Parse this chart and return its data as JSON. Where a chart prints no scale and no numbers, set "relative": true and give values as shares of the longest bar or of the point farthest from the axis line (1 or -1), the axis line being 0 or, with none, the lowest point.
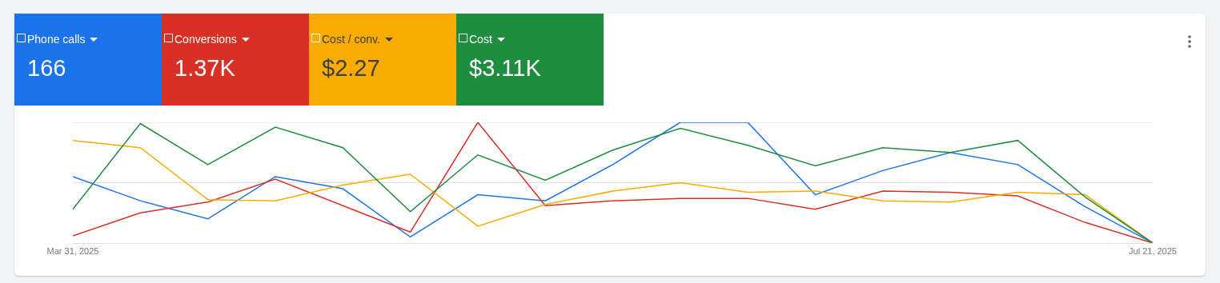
{
  "chart_data": {
    "type": "line",
    "relative": true,
    "legend": "top left",
    "marker": "none",
    "line_style": "solid",
    "ref_lines": [
      {
        "axis": "y",
        "value": 0.5,
        "color": "#e0e0e0"
      },
      {
        "axis": "y",
        "value": 1,
        "color": "#e0e0e0"
      }
    ],
    "x": [
      "2025-03-31",
      "2025-04-07",
      "2025-04-14",
      "2025-04-21",
      "2025-04-28",
      "2025-05-05",
      "2025-05-12",
      "2025-05-19",
      "2025-05-26",
      "2025-06-02",
      "2025-06-09",
      "2025-06-16",
      "2025-06-23",
      "2025-06-30",
      "2025-07-07",
      "2025-07-14",
      "2025-07-21"
    ],
    "xlim": [
      "2025-03-31",
      "2025-07-21"
    ],
    "xticks": [
      {
        "value": "2025-03-31",
        "label": "Mar 31, 2025"
      },
      {
        "value": "2025-07-21",
        "label": "Jul 21, 2025"
      }
    ],
    "series": [
      {
        "name": "Phone calls",
        "color": "#1a73e8",
        "values": [
          0.55,
          0.35,
          0.2,
          0.55,
          0.45,
          0.05,
          0.4,
          0.35,
          0.65,
          1,
          1,
          0.4,
          0.6,
          0.75,
          0.65,
          0.3,
          0
        ]
      },
      {
        "name": "Conversions",
        "color": "#d93025",
        "values": [
          0.06,
          0.25,
          0.34,
          0.53,
          0.31,
          0.09,
          1,
          0.31,
          0.35,
          0.37,
          0.37,
          0.28,
          0.43,
          0.42,
          0.39,
          0.17,
          0
        ]
      },
      {
        "name": "Cost / conv.",
        "color": "#f9ab00",
        "values": [
          0.85,
          0.79,
          0.36,
          0.35,
          0.48,
          0.57,
          0.14,
          0.32,
          0.43,
          0.5,
          0.42,
          0.43,
          0.35,
          0.34,
          0.42,
          0.4,
          0
        ]
      },
      {
        "name": "Cost",
        "color": "#1e8e3e",
        "values": [
          0.28,
          0.99,
          0.65,
          0.96,
          0.79,
          0.26,
          0.73,
          0.52,
          0.77,
          0.95,
          0.81,
          0.64,
          0.79,
          0.75,
          0.85,
          0.38,
          0
        ]
      }
    ],
    "annotations": [
      "166",
      "1.37K",
      "$2.27",
      "$3.11K"
    ]
  }
}
